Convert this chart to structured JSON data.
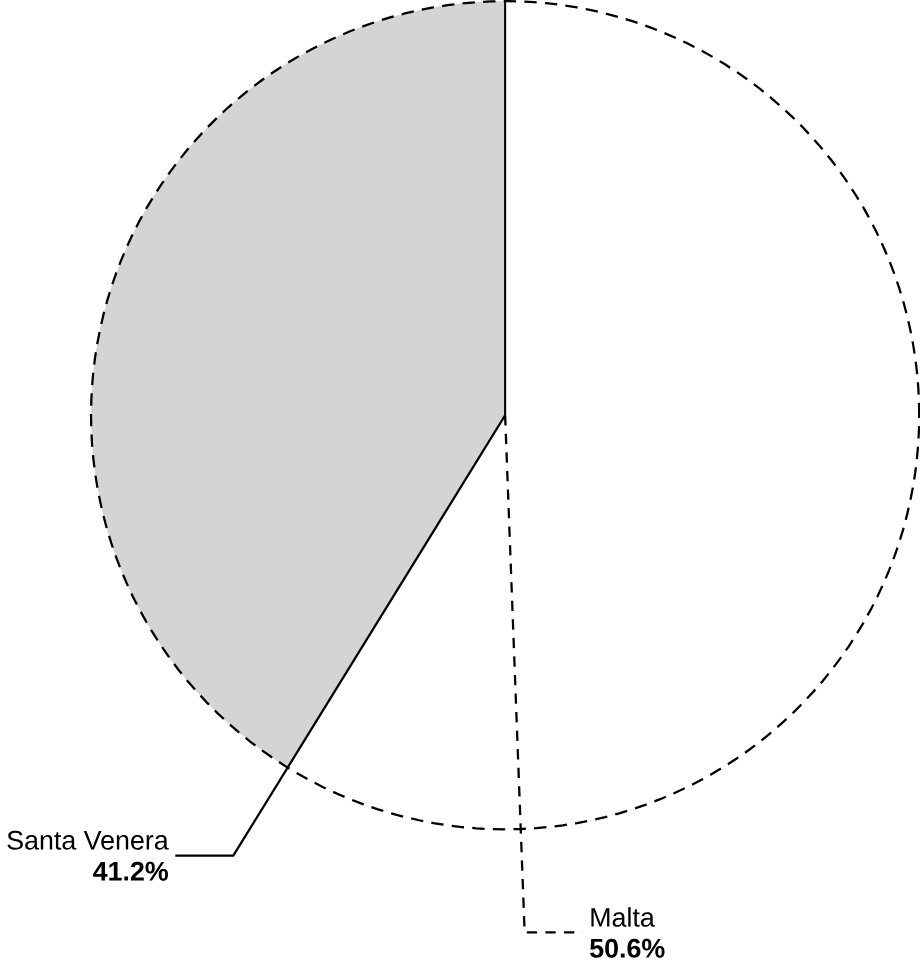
{
  "chart_data": {
    "type": "other",
    "categories": [
      "Santa Venera",
      "Malta"
    ],
    "values": [
      41.2,
      50.6
    ],
    "value_labels": [
      "41.2%",
      "50.6%"
    ],
    "colors": [
      "#d4d4d4",
      "#ffffff"
    ]
  }
}
